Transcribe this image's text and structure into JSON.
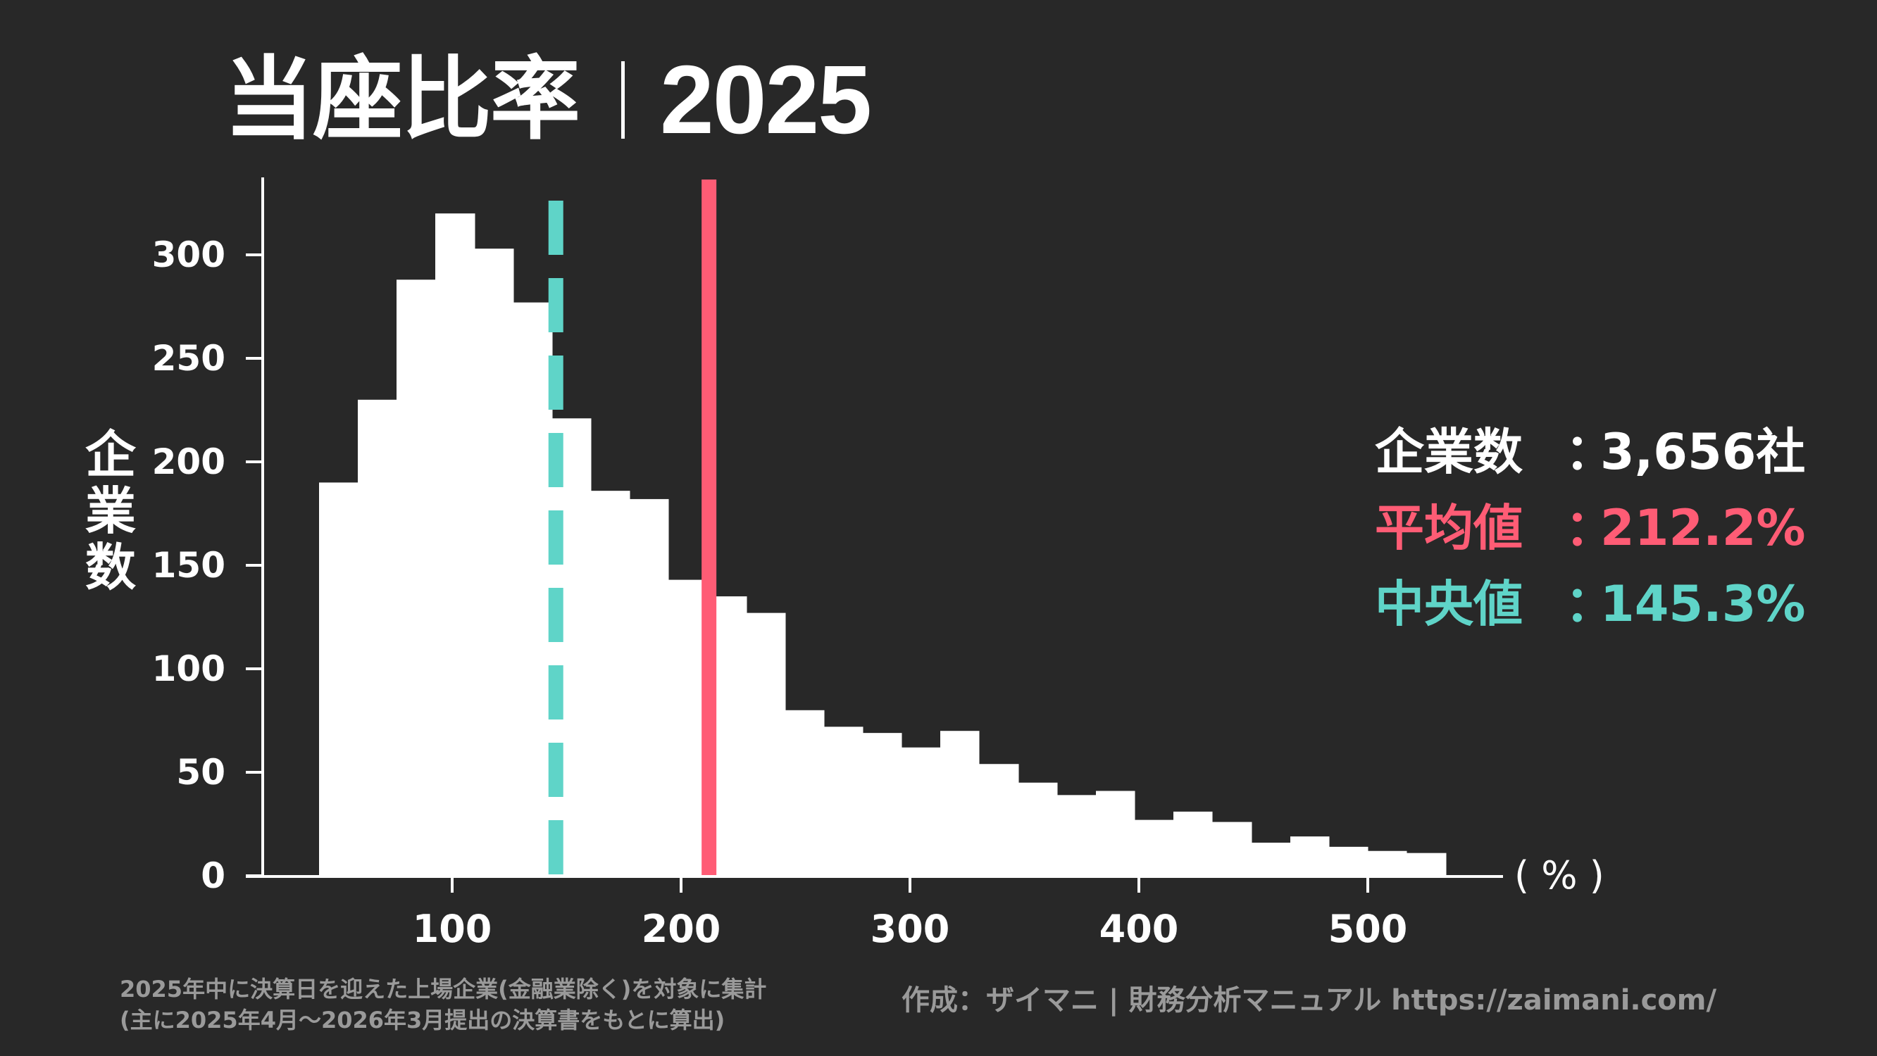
{
  "title": {
    "main": "当座比率",
    "year": "2025"
  },
  "y_axis_label": [
    "企",
    "業",
    "数"
  ],
  "unit_label": "( % )",
  "stats": {
    "count": {
      "label": "企業数",
      "colon": "：",
      "value": "3,656社",
      "color": "#FFFFFF"
    },
    "mean": {
      "label": "平均値",
      "colon": "：",
      "value": "212.2%",
      "color": "#FF5C75"
    },
    "median": {
      "label": "中央値",
      "colon": "：",
      "value": "145.3%",
      "color": "#5FD4C8"
    }
  },
  "notes": {
    "line1": "2025年中に決算日を迎えた上場企業(金融業除く)を対象に集計",
    "line2": "(主に2025年4月〜2026年3月提出の決算書をもとに算出)"
  },
  "credit": "作成：ザイマニ | 財務分析マニュアル https://zaimani.com/",
  "colors": {
    "background": "#282828",
    "bars": "#FFFFFF",
    "mean": "#FF5C75",
    "median": "#5FD4C8",
    "axis": "#FFFFFF",
    "footer": "#9A9A9A"
  },
  "chart_data": {
    "type": "bar",
    "subtype": "histogram",
    "title": "当座比率 | 2025",
    "xlabel": "( % )",
    "ylabel": "企業数",
    "bin_start": 41.8,
    "bin_width": 16.97,
    "bin_edges": [
      41.8,
      58.8,
      75.7,
      92.7,
      109.7,
      126.7,
      143.6,
      160.6,
      177.6,
      194.5,
      211.5,
      228.5,
      245.4,
      262.4,
      279.4,
      296.4,
      313.3,
      330.3,
      347.3,
      364.2,
      381.2,
      398.2,
      415.1,
      432.1,
      449.1,
      466.1,
      483.0,
      500.0,
      517.0,
      534.0
    ],
    "values": [
      190,
      230,
      288,
      320,
      303,
      277,
      221,
      186,
      182,
      143,
      135,
      127,
      80,
      72,
      69,
      62,
      70,
      54,
      45,
      39,
      41,
      27,
      31,
      26,
      16,
      19,
      14,
      12,
      11
    ],
    "xticks": [
      100,
      200,
      300,
      400,
      500
    ],
    "yticks": [
      0,
      50,
      100,
      150,
      200,
      250,
      300
    ],
    "xlim": [
      10,
      560
    ],
    "ylim": [
      0,
      335
    ],
    "reference_lines": [
      {
        "name": "平均値",
        "x": 212.2,
        "style": "solid",
        "color": "#FF5C75"
      },
      {
        "name": "中央値",
        "x": 145.3,
        "style": "dashed",
        "color": "#5FD4C8"
      }
    ],
    "annotations": [
      "企業数：3,656社",
      "平均値：212.2%",
      "中央値：145.3%"
    ],
    "grid": false,
    "legend_position": "right (text annotations)"
  }
}
